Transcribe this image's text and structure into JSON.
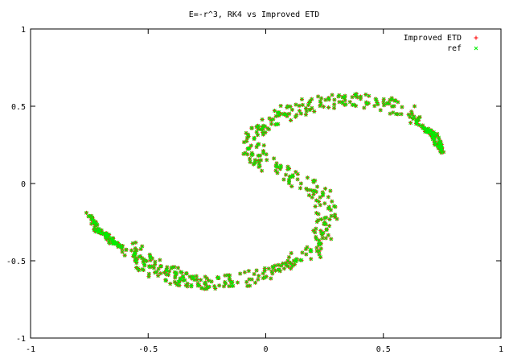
{
  "chart_data": {
    "type": "scatter",
    "title": "E=-r^3, RK4 vs Improved ETD",
    "xlabel": "",
    "ylabel": "",
    "xlim": [
      -1,
      1
    ],
    "ylim": [
      -1,
      1
    ],
    "xticks": [
      "-1",
      "-0.5",
      "0",
      "0.5",
      "1"
    ],
    "yticks": [
      "-1",
      "-0.5",
      "0",
      "0.5",
      "1"
    ],
    "grid": false,
    "legend_position": "top-right",
    "series": [
      {
        "name": "Improved ETD",
        "marker": "+",
        "color": "#ff0000",
        "note_shape": "S-shaped two-armed spiral point cloud",
        "points": [
          [
            -0.75,
            -0.2
          ],
          [
            -0.72,
            -0.3
          ],
          [
            -0.68,
            -0.33
          ],
          [
            -0.65,
            -0.38
          ],
          [
            -0.6,
            -0.42
          ],
          [
            -0.55,
            -0.47
          ],
          [
            -0.5,
            -0.52
          ],
          [
            -0.45,
            -0.56
          ],
          [
            -0.4,
            -0.6
          ],
          [
            -0.35,
            -0.62
          ],
          [
            -0.3,
            -0.64
          ],
          [
            -0.2,
            -0.64
          ],
          [
            -0.1,
            -0.62
          ],
          [
            0.0,
            -0.58
          ],
          [
            0.1,
            -0.52
          ],
          [
            0.18,
            -0.45
          ],
          [
            0.23,
            -0.36
          ],
          [
            0.26,
            -0.25
          ],
          [
            0.25,
            -0.12
          ],
          [
            0.2,
            -0.02
          ],
          [
            0.1,
            0.05
          ],
          [
            0.0,
            0.12
          ],
          [
            -0.05,
            0.2
          ],
          [
            -0.05,
            0.3
          ],
          [
            0.0,
            0.38
          ],
          [
            0.07,
            0.45
          ],
          [
            0.15,
            0.5
          ],
          [
            0.25,
            0.53
          ],
          [
            0.35,
            0.54
          ],
          [
            0.45,
            0.53
          ],
          [
            0.55,
            0.5
          ],
          [
            0.62,
            0.43
          ],
          [
            0.7,
            0.32
          ],
          [
            0.75,
            0.2
          ],
          [
            0.72,
            0.32
          ],
          [
            0.68,
            0.35
          ]
        ]
      },
      {
        "name": "ref",
        "marker": "x",
        "color": "#00ee00",
        "points": [
          [
            -0.75,
            -0.2
          ],
          [
            -0.72,
            -0.3
          ],
          [
            -0.68,
            -0.33
          ],
          [
            -0.65,
            -0.38
          ],
          [
            -0.6,
            -0.42
          ],
          [
            -0.55,
            -0.47
          ],
          [
            -0.5,
            -0.52
          ],
          [
            -0.45,
            -0.56
          ],
          [
            -0.4,
            -0.6
          ],
          [
            -0.35,
            -0.62
          ],
          [
            -0.3,
            -0.64
          ],
          [
            -0.2,
            -0.64
          ],
          [
            -0.1,
            -0.62
          ],
          [
            0.0,
            -0.58
          ],
          [
            0.1,
            -0.52
          ],
          [
            0.18,
            -0.45
          ],
          [
            0.23,
            -0.36
          ],
          [
            0.26,
            -0.25
          ],
          [
            0.25,
            -0.12
          ],
          [
            0.2,
            -0.02
          ],
          [
            0.1,
            0.05
          ],
          [
            0.0,
            0.12
          ],
          [
            -0.05,
            0.2
          ],
          [
            -0.05,
            0.3
          ],
          [
            0.0,
            0.38
          ],
          [
            0.07,
            0.45
          ],
          [
            0.15,
            0.5
          ],
          [
            0.25,
            0.53
          ],
          [
            0.35,
            0.54
          ],
          [
            0.45,
            0.53
          ],
          [
            0.55,
            0.5
          ],
          [
            0.62,
            0.43
          ],
          [
            0.7,
            0.32
          ],
          [
            0.75,
            0.2
          ],
          [
            0.72,
            0.32
          ],
          [
            0.68,
            0.35
          ]
        ]
      }
    ]
  }
}
